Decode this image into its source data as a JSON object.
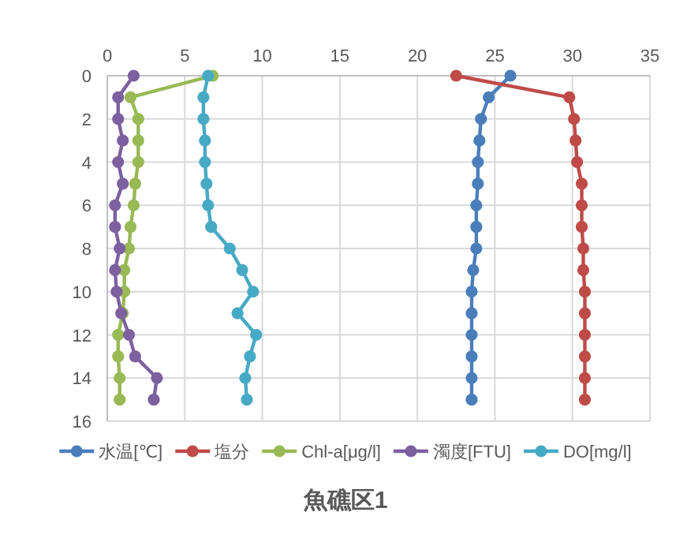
{
  "chart_data": {
    "type": "line",
    "title": "魚礁区1",
    "orientation": "horizontal",
    "x": [
      0,
      1,
      2,
      3,
      4,
      5,
      6,
      7,
      8,
      9,
      10,
      11,
      12,
      13,
      14,
      15
    ],
    "series": [
      {
        "name": "水温[℃]",
        "color": "#4a7ebb",
        "values": [
          26.0,
          24.6,
          24.1,
          24.0,
          23.9,
          23.9,
          23.8,
          23.8,
          23.8,
          23.6,
          23.5,
          23.5,
          23.5,
          23.5,
          23.5,
          23.5
        ]
      },
      {
        "name": "塩分",
        "color": "#be4b48",
        "values": [
          22.5,
          29.8,
          30.1,
          30.2,
          30.3,
          30.6,
          30.6,
          30.6,
          30.7,
          30.7,
          30.8,
          30.8,
          30.8,
          30.8,
          30.8,
          30.8
        ]
      },
      {
        "name": "Chl-a[μg/l]",
        "color": "#98b954",
        "values": [
          6.8,
          1.5,
          2.0,
          2.0,
          2.0,
          1.8,
          1.7,
          1.5,
          1.4,
          1.1,
          1.1,
          1.0,
          0.7,
          0.7,
          0.8,
          0.8
        ]
      },
      {
        "name": "濁度[FTU]",
        "color": "#7d60a0",
        "values": [
          1.7,
          0.7,
          0.7,
          1.0,
          0.7,
          1.0,
          0.5,
          0.5,
          0.8,
          0.5,
          0.6,
          0.9,
          1.4,
          1.8,
          3.2,
          3.0
        ]
      },
      {
        "name": "DO[mg/l]",
        "color": "#46aac5",
        "values": [
          6.5,
          6.2,
          6.2,
          6.3,
          6.3,
          6.4,
          6.5,
          6.7,
          7.9,
          8.7,
          9.4,
          8.4,
          9.6,
          9.2,
          8.9,
          9.0
        ]
      }
    ],
    "xlim": [
      0,
      35
    ],
    "xticks": [
      0,
      5,
      10,
      15,
      20,
      25,
      30,
      35
    ],
    "ylim": [
      16,
      0
    ],
    "yticks": [
      0,
      2,
      4,
      6,
      8,
      10,
      12,
      14,
      16
    ],
    "grid": true,
    "legend": "bottom",
    "marker": "circle",
    "line_style": "solid"
  }
}
